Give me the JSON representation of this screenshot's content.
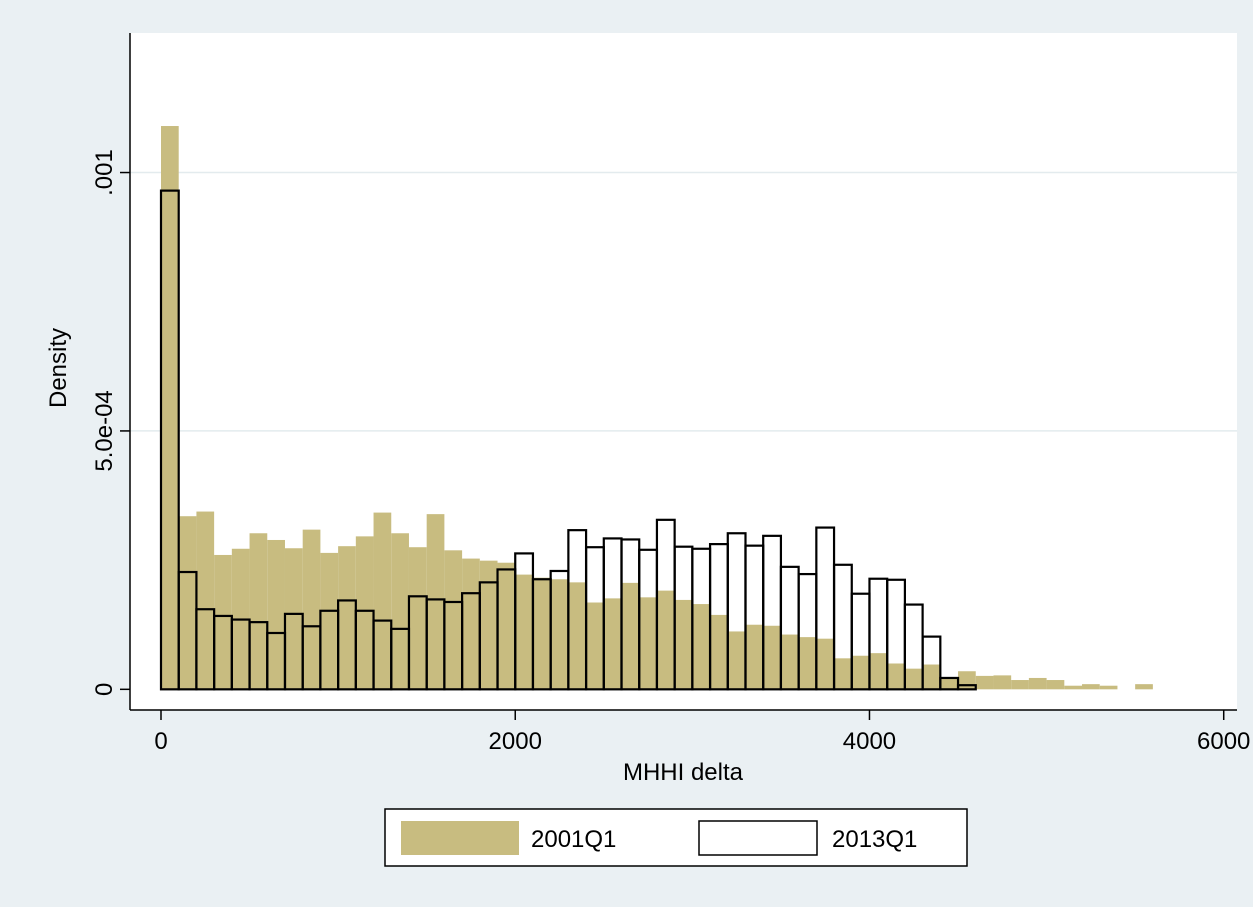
{
  "chart_data": {
    "type": "bar",
    "subtype": "overlaid-histogram",
    "xlabel": "MHHI delta",
    "ylabel": "Density",
    "xlim": [
      -175,
      6075
    ],
    "ylim": [
      -4e-05,
      0.00127
    ],
    "x_ticks": [
      0,
      2000,
      4000,
      6000
    ],
    "x_tick_labels": [
      "0",
      "2000",
      "4000",
      "6000"
    ],
    "y_ticks": [
      0,
      0.0005,
      0.001
    ],
    "y_tick_labels": [
      "0",
      "5.0e-04",
      ".001"
    ],
    "grid": "horizontal",
    "legend_position": "bottom",
    "bin_width": 100,
    "series": [
      {
        "name": "2001Q1",
        "style": "filled",
        "color": "#c8bc80",
        "x": [
          0,
          100,
          200,
          300,
          400,
          500,
          600,
          700,
          800,
          900,
          1000,
          1100,
          1200,
          1300,
          1400,
          1500,
          1600,
          1700,
          1800,
          1900,
          2000,
          2100,
          2200,
          2300,
          2400,
          2500,
          2600,
          2700,
          2800,
          2900,
          3000,
          3100,
          3200,
          3300,
          3400,
          3500,
          3600,
          3700,
          3800,
          3900,
          4000,
          4100,
          4200,
          4300,
          4400,
          4500,
          4600,
          4700,
          4800,
          4900,
          5000,
          5100,
          5200,
          5300,
          5400,
          5500,
          5600
        ],
        "values": [
          0.00109,
          0.000335,
          0.000344,
          0.00026,
          0.000272,
          0.000302,
          0.000289,
          0.000273,
          0.000309,
          0.000264,
          0.000277,
          0.000296,
          0.000342,
          0.000302,
          0.000275,
          0.000339,
          0.000269,
          0.000253,
          0.000249,
          0.000245,
          0.000222,
          0.000216,
          0.000213,
          0.000207,
          0.000168,
          0.000176,
          0.000206,
          0.000178,
          0.000191,
          0.000173,
          0.000165,
          0.000144,
          0.000112,
          0.000125,
          0.000123,
          0.000106,
          0.000101,
          9.8e-05,
          6e-05,
          6.5e-05,
          7e-05,
          5e-05,
          4e-05,
          4.8e-05,
          2e-05,
          3.5e-05,
          2.6e-05,
          2.7e-05,
          1.8e-05,
          2.2e-05,
          1.8e-05,
          7e-06,
          1e-05,
          7e-06,
          0,
          1e-05,
          0
        ]
      },
      {
        "name": "2013Q1",
        "style": "outline",
        "color": "#000000",
        "x": [
          0,
          100,
          200,
          300,
          400,
          500,
          600,
          700,
          800,
          900,
          1000,
          1100,
          1200,
          1300,
          1400,
          1500,
          1600,
          1700,
          1800,
          1900,
          2000,
          2100,
          2200,
          2300,
          2400,
          2500,
          2600,
          2700,
          2800,
          2900,
          3000,
          3100,
          3200,
          3300,
          3400,
          3500,
          3600,
          3700,
          3800,
          3900,
          4000,
          4100,
          4200,
          4300,
          4400,
          4500
        ],
        "values": [
          0.000965,
          0.000227,
          0.000155,
          0.000142,
          0.000135,
          0.00013,
          0.000109,
          0.000146,
          0.000122,
          0.000152,
          0.000172,
          0.000152,
          0.000133,
          0.000117,
          0.00018,
          0.000174,
          0.000169,
          0.000186,
          0.000207,
          0.000232,
          0.000263,
          0.000213,
          0.000229,
          0.000308,
          0.000275,
          0.000292,
          0.00029,
          0.00027,
          0.000328,
          0.000276,
          0.000272,
          0.000281,
          0.000302,
          0.000278,
          0.000297,
          0.000237,
          0.000223,
          0.000313,
          0.000241,
          0.000185,
          0.000214,
          0.000212,
          0.000164,
          0.000102,
          2.2e-05,
          8e-06
        ]
      }
    ]
  }
}
